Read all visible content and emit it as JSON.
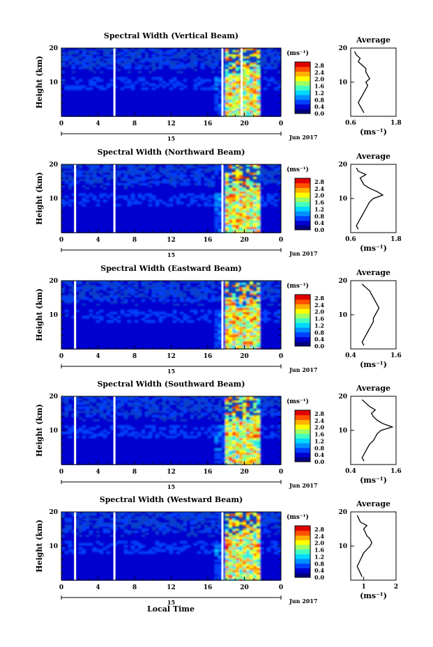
{
  "figure": {
    "xlabel": "Local Time",
    "date_suffix": "Jun 2017",
    "day_label": "15",
    "x_ticks": [
      "0",
      "4",
      "8",
      "12",
      "16",
      "20",
      "0"
    ],
    "y_ticks": [
      "20",
      "10"
    ],
    "ylabel": "Height (km)",
    "unit_label": "(ms⁻¹)",
    "colorbar_ticks": [
      "2.8",
      "2.4",
      "2.0",
      "1.6",
      "1.2",
      "0.8",
      "0.4",
      "0.0"
    ],
    "colors": [
      "#000080",
      "#0000d0",
      "#0040ff",
      "#0090ff",
      "#00d8ff",
      "#40ffc0",
      "#a0ff60",
      "#ffff00",
      "#ffb000",
      "#ff5000",
      "#e00000"
    ],
    "avg_title": "Average",
    "avg_xlabel": "(ms⁻¹)"
  },
  "chart_data": [
    {
      "type": "heatmap",
      "title": "Spectral Width (Vertical Beam)",
      "xlabel": "Local Time",
      "ylabel": "Height (km)",
      "xlim": [
        0,
        24
      ],
      "ylim": [
        0,
        20
      ],
      "clim": [
        0,
        3.0
      ],
      "data_gaps_hours": [
        5.8,
        17.6,
        19.7
      ],
      "avg_xticks": [
        "0.6",
        "1.8"
      ],
      "avg_xlim": [
        0.6,
        1.8
      ],
      "average_profile": {
        "height": [
          1,
          2,
          3,
          4,
          5,
          6,
          7,
          8,
          9,
          10,
          11,
          12,
          13,
          14,
          15,
          16,
          17,
          18,
          19
        ],
        "width": [
          0.95,
          0.9,
          0.85,
          0.8,
          0.85,
          0.9,
          0.95,
          1.0,
          1.05,
          1.0,
          1.1,
          1.05,
          1.0,
          1.0,
          0.9,
          0.8,
          0.85,
          0.75,
          0.7
        ]
      }
    },
    {
      "type": "heatmap",
      "title": "Spectral Width (Northward Beam)",
      "xlabel": "Local Time",
      "ylabel": "Height (km)",
      "xlim": [
        0,
        24
      ],
      "ylim": [
        0,
        20
      ],
      "clim": [
        0,
        3.0
      ],
      "data_gaps_hours": [
        1.5,
        5.8,
        17.6
      ],
      "avg_xticks": [
        "0.6",
        "1.8"
      ],
      "avg_xlim": [
        0.6,
        1.8
      ],
      "average_profile": {
        "height": [
          1,
          2,
          3,
          4,
          5,
          6,
          7,
          8,
          9,
          10,
          11,
          12,
          13,
          14,
          15,
          16,
          17,
          18,
          19
        ],
        "width": [
          0.8,
          0.75,
          0.8,
          0.85,
          0.9,
          0.95,
          1.0,
          1.05,
          1.1,
          1.2,
          1.45,
          1.3,
          1.1,
          0.95,
          0.9,
          0.85,
          1.0,
          0.8,
          0.75
        ]
      }
    },
    {
      "type": "heatmap",
      "title": "Spectral Width (Eastward Beam)",
      "xlabel": "Local Time",
      "ylabel": "Height (km)",
      "xlim": [
        0,
        24
      ],
      "ylim": [
        0,
        20
      ],
      "clim": [
        0,
        3.0
      ],
      "data_gaps_hours": [
        1.5,
        17.6
      ],
      "avg_xticks": [
        "0.4",
        "1.6"
      ],
      "avg_xlim": [
        0.4,
        1.6
      ],
      "average_profile": {
        "height": [
          1,
          2,
          3,
          4,
          5,
          6,
          7,
          8,
          9,
          10,
          11,
          12,
          13,
          14,
          15,
          16,
          17,
          18,
          19
        ],
        "width": [
          0.75,
          0.7,
          0.75,
          0.8,
          0.85,
          0.9,
          0.95,
          1.0,
          1.0,
          1.05,
          1.1,
          1.15,
          1.1,
          1.05,
          1.0,
          0.95,
          0.9,
          0.8,
          0.7
        ]
      }
    },
    {
      "type": "heatmap",
      "title": "Spectral Width (Southward Beam)",
      "xlabel": "Local Time",
      "ylabel": "Height (km)",
      "xlim": [
        0,
        24
      ],
      "ylim": [
        0,
        20
      ],
      "clim": [
        0,
        3.0
      ],
      "data_gaps_hours": [
        1.5,
        5.8
      ],
      "avg_xticks": [
        "0.4",
        "1.6"
      ],
      "avg_xlim": [
        0.4,
        1.6
      ],
      "average_profile": {
        "height": [
          1,
          2,
          3,
          4,
          5,
          6,
          7,
          8,
          9,
          10,
          11,
          12,
          13,
          14,
          15,
          16,
          17,
          18,
          19
        ],
        "width": [
          0.75,
          0.7,
          0.75,
          0.8,
          0.85,
          0.9,
          1.0,
          1.05,
          1.1,
          1.2,
          1.5,
          1.25,
          1.1,
          1.0,
          0.95,
          1.05,
          0.9,
          0.8,
          0.7
        ]
      }
    },
    {
      "type": "heatmap",
      "title": "Spectral Width (Westward Beam)",
      "xlabel": "Local Time",
      "ylabel": "Height (km)",
      "xlim": [
        0,
        24
      ],
      "ylim": [
        0,
        20
      ],
      "clim": [
        0,
        3.0
      ],
      "data_gaps_hours": [
        1.5,
        5.8,
        17.6
      ],
      "avg_xticks": [
        "1",
        "2"
      ],
      "avg_xlim": [
        0.6,
        2.0
      ],
      "average_profile": {
        "height": [
          1,
          2,
          3,
          4,
          5,
          6,
          7,
          8,
          9,
          10,
          11,
          12,
          13,
          14,
          15,
          16,
          17,
          18,
          19
        ],
        "width": [
          0.95,
          0.9,
          0.85,
          0.8,
          0.85,
          0.9,
          0.95,
          1.0,
          1.1,
          1.2,
          1.25,
          1.2,
          1.1,
          1.05,
          1.0,
          1.1,
          0.9,
          0.85,
          0.8
        ]
      }
    }
  ]
}
